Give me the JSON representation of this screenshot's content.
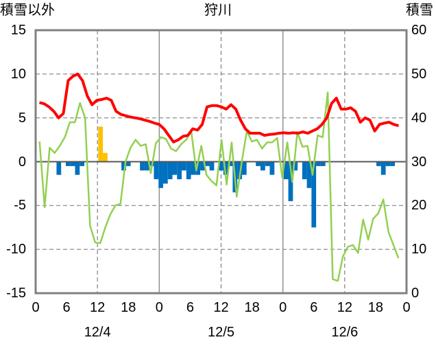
{
  "chart_data": {
    "type": "bar+line",
    "title": "狩川",
    "left_axis_title": "積雪以外",
    "right_axis_title": "積雪",
    "left_ylim": [
      -15,
      15
    ],
    "left_ticks": [
      "15",
      "10",
      "5",
      "0",
      "-5",
      "-10",
      "-15"
    ],
    "right_ylim": [
      0,
      60
    ],
    "right_ticks": [
      "60",
      "50",
      "40",
      "30",
      "20",
      "10",
      "0"
    ],
    "x_hour_ticks": [
      "0",
      "6",
      "12",
      "18",
      "0",
      "6",
      "12",
      "18",
      "0",
      "6",
      "12",
      "18",
      "0"
    ],
    "date_labels": [
      "12/4",
      "12/5",
      "12/6"
    ],
    "grid": true,
    "bar_series": [
      {
        "color": "#0070c0",
        "values": [
          0,
          0,
          0,
          0,
          -1.5,
          0,
          -0.5,
          -0.5,
          -1.5,
          -0.5,
          0,
          0,
          0,
          0,
          0,
          0,
          0,
          0,
          -1,
          -0.5,
          0,
          0,
          -1,
          -1,
          -0.5,
          -2,
          -3,
          -2.5,
          -2,
          -1.5,
          -2,
          -1,
          -2,
          -1.5,
          -1.5,
          -1,
          -0.5,
          -1,
          0,
          -1,
          -1.5,
          -0.5,
          -3.5,
          -2,
          -1.5,
          0,
          0,
          -0.5,
          -1,
          -0.5,
          -1.5,
          0,
          0,
          -2,
          -4.5,
          -1,
          0,
          -2,
          -3,
          -7.5,
          -0.5,
          -0.5,
          0,
          0,
          0,
          0,
          0,
          0,
          0,
          0,
          0,
          0,
          0,
          -0.5,
          -1.5,
          -0.5,
          -0.5,
          0,
          0,
          0
        ]
      },
      {
        "color": "#ffc000",
        "values": [
          0,
          0,
          0,
          0,
          0,
          0,
          0,
          0,
          0,
          0,
          0,
          0,
          0,
          4,
          1,
          0,
          0,
          0,
          0,
          0,
          0,
          0,
          0,
          0,
          0,
          0,
          0,
          0,
          0,
          0,
          0,
          0,
          0,
          0,
          0,
          0,
          0,
          0,
          0,
          0,
          0,
          0,
          0,
          0,
          0,
          0,
          0,
          0,
          0,
          0,
          0,
          0,
          0,
          0,
          0,
          0,
          0,
          0,
          0,
          0,
          0,
          0,
          0,
          0,
          0,
          0,
          0,
          0,
          0,
          0,
          0,
          0,
          0,
          0,
          0,
          0,
          0,
          0,
          0,
          0
        ]
      }
    ],
    "line_series": [
      {
        "axis": "left",
        "color": "#92d050",
        "values": [
          2.3,
          -5.2,
          1.6,
          1.0,
          1.8,
          2.8,
          4.5,
          4.5,
          6.7,
          5.0,
          -7.3,
          -9.2,
          -9.3,
          -7.5,
          -6.0,
          -5.0,
          -4.8,
          0,
          1.6,
          2.5,
          1.8,
          2.0,
          -1.3,
          2.1,
          2.8,
          2.6,
          1.5,
          1.2,
          2.0,
          2.5,
          3.5,
          -1.0,
          1.8,
          -1.5,
          -2.2,
          -2.7,
          2.5,
          -2.6,
          2.2,
          -4.0,
          0,
          3.5,
          2.3,
          2.5,
          1.5,
          2.2,
          2.2,
          2.7,
          -1.8,
          2.2,
          -2.3,
          3.4,
          1.7,
          1.8,
          -1.5,
          3.0,
          2.8,
          7.9,
          -13.4,
          -13.6,
          -10.8,
          -9.7,
          -9.5,
          -10.4,
          -6.6,
          -8.9,
          -6.5,
          -5.9,
          -4.3,
          -8.0,
          -9.5,
          -11.0
        ]
      },
      {
        "axis": "right",
        "color": "#ff0000",
        "values": [
          43.5,
          43.2,
          42.5,
          41.5,
          40,
          41,
          48.5,
          49.5,
          50,
          48.5,
          45,
          43,
          44,
          44.2,
          44.5,
          44,
          41.5,
          40.8,
          40.5,
          40.2,
          40,
          39.8,
          39.5,
          39.2,
          38.8,
          38.5,
          37.5,
          36,
          34.5,
          35,
          35.8,
          36,
          37.5,
          37.2,
          38.5,
          42.5,
          42.8,
          42.8,
          42.5,
          42,
          43,
          42,
          39.5,
          37.5,
          36.5,
          36.5,
          36.5,
          36,
          36.2,
          36.3,
          36.5,
          36.6,
          36.5,
          36.6,
          36.5,
          36.8,
          36.5,
          37,
          37.5,
          38.5,
          40,
          43.3,
          44.5,
          42,
          42,
          42.3,
          41.5,
          39,
          40,
          39.5,
          37,
          38.5,
          38.8,
          39,
          38.5,
          38.2
        ]
      }
    ],
    "zero_line_color": "#7030a0"
  }
}
